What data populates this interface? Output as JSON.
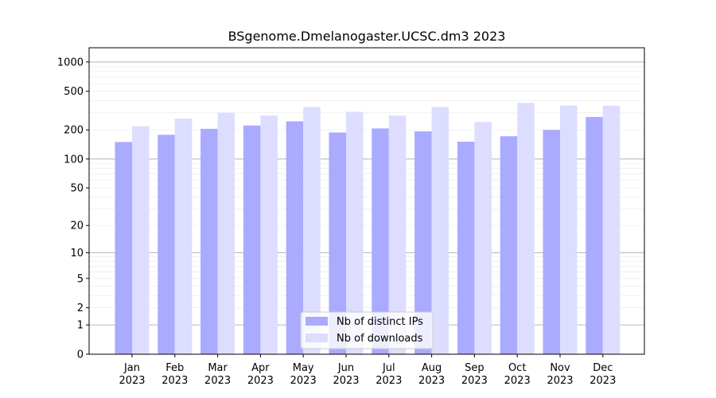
{
  "chart_data": {
    "type": "bar",
    "title": "BSgenome.Dmelanogaster.UCSC.dm3 2023",
    "xlabel": "",
    "ylabel": "",
    "y_scale": "log1p",
    "ylim": [
      0,
      1400
    ],
    "y_ticks": [
      0,
      1,
      2,
      5,
      10,
      20,
      50,
      100,
      200,
      500,
      1000
    ],
    "grid": true,
    "legend_position": "lower center",
    "categories": [
      {
        "month": "Jan",
        "year": "2023"
      },
      {
        "month": "Feb",
        "year": "2023"
      },
      {
        "month": "Mar",
        "year": "2023"
      },
      {
        "month": "Apr",
        "year": "2023"
      },
      {
        "month": "May",
        "year": "2023"
      },
      {
        "month": "Jun",
        "year": "2023"
      },
      {
        "month": "Jul",
        "year": "2023"
      },
      {
        "month": "Aug",
        "year": "2023"
      },
      {
        "month": "Sep",
        "year": "2023"
      },
      {
        "month": "Oct",
        "year": "2023"
      },
      {
        "month": "Nov",
        "year": "2023"
      },
      {
        "month": "Dec",
        "year": "2023"
      }
    ],
    "series": [
      {
        "name": "Nb of distinct IPs",
        "color": "#aaaaff",
        "values": [
          150,
          178,
          205,
          222,
          245,
          188,
          207,
          193,
          151,
          172,
          200,
          272
        ]
      },
      {
        "name": "Nb of downloads",
        "color": "#ddddff",
        "values": [
          218,
          262,
          301,
          281,
          345,
          307,
          281,
          345,
          242,
          379,
          357,
          355
        ]
      }
    ]
  }
}
